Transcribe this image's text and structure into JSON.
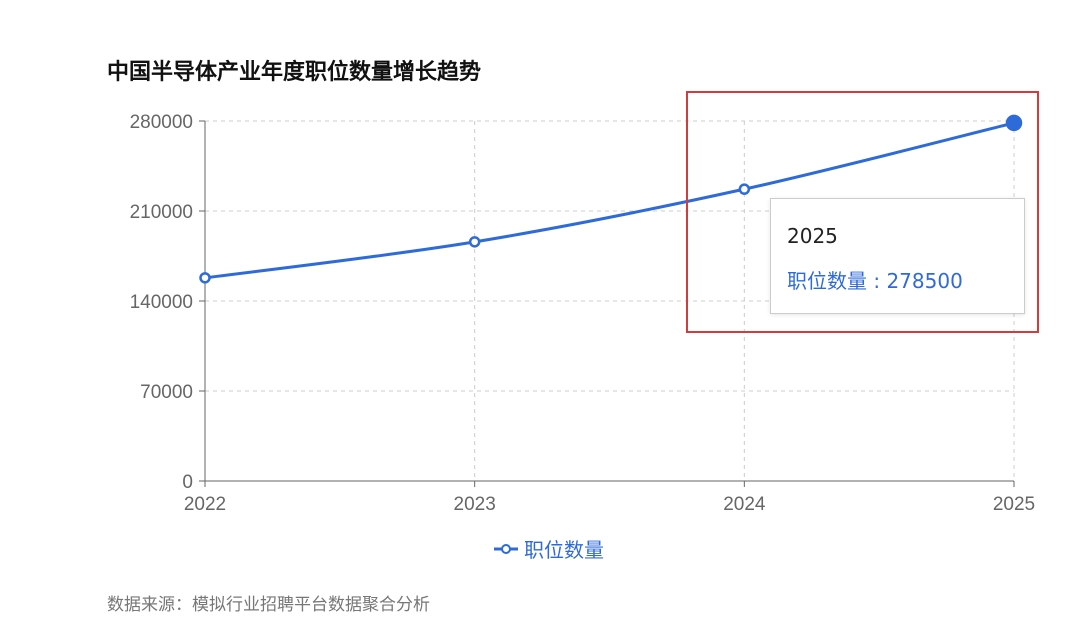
{
  "chart_data": {
    "type": "line",
    "title": "中国半导体产业年度职位数量增长趋势",
    "categories": [
      "2022",
      "2023",
      "2024",
      "2025"
    ],
    "series": [
      {
        "name": "职位数量",
        "values": [
          158000,
          186000,
          227000,
          278500
        ],
        "color": "#2f6bd8"
      }
    ],
    "yticks": [
      "0",
      "70000",
      "140000",
      "210000",
      "280000"
    ],
    "ylim": [
      0,
      280000
    ],
    "grid": true,
    "legend": "bottom-center",
    "tooltip": {
      "title": "2025",
      "label": "职位数量 : 278500"
    },
    "source": "数据来源：模拟行业招聘平台数据聚合分析"
  }
}
